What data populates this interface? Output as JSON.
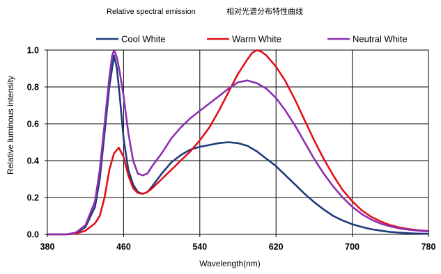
{
  "chart_data": {
    "type": "line",
    "title": "Relative spectral emission",
    "title_cn": "相对光谱分布特性曲线",
    "xlabel": "Wavelength(nm)",
    "ylabel": "Relative luminous intensity",
    "xlim": [
      380,
      780
    ],
    "ylim": [
      0,
      1.0
    ],
    "xticks": [
      "380",
      "460",
      "540",
      "620",
      "700",
      "780"
    ],
    "yticks": [
      "0.0",
      "0.2",
      "0.4",
      "0.6",
      "0.8",
      "1.0"
    ],
    "grid": true,
    "legend_position": "top",
    "series": [
      {
        "name": "Cool White",
        "color": "#1f3a7a",
        "points": [
          [
            380,
            0
          ],
          [
            400,
            0
          ],
          [
            410,
            0.005
          ],
          [
            420,
            0.04
          ],
          [
            430,
            0.15
          ],
          [
            435,
            0.3
          ],
          [
            440,
            0.55
          ],
          [
            445,
            0.8
          ],
          [
            450,
            0.97
          ],
          [
            453,
            0.9
          ],
          [
            456,
            0.75
          ],
          [
            460,
            0.52
          ],
          [
            465,
            0.35
          ],
          [
            470,
            0.27
          ],
          [
            475,
            0.23
          ],
          [
            480,
            0.22
          ],
          [
            485,
            0.23
          ],
          [
            490,
            0.26
          ],
          [
            500,
            0.33
          ],
          [
            510,
            0.39
          ],
          [
            520,
            0.43
          ],
          [
            530,
            0.46
          ],
          [
            540,
            0.475
          ],
          [
            550,
            0.485
          ],
          [
            560,
            0.495
          ],
          [
            570,
            0.5
          ],
          [
            580,
            0.495
          ],
          [
            590,
            0.48
          ],
          [
            600,
            0.45
          ],
          [
            610,
            0.41
          ],
          [
            620,
            0.37
          ],
          [
            630,
            0.32
          ],
          [
            640,
            0.27
          ],
          [
            650,
            0.22
          ],
          [
            660,
            0.175
          ],
          [
            670,
            0.135
          ],
          [
            680,
            0.1
          ],
          [
            690,
            0.075
          ],
          [
            700,
            0.055
          ],
          [
            710,
            0.04
          ],
          [
            720,
            0.028
          ],
          [
            730,
            0.02
          ],
          [
            740,
            0.013
          ],
          [
            750,
            0.009
          ],
          [
            760,
            0.006
          ],
          [
            770,
            0.004
          ],
          [
            780,
            0.003
          ]
        ]
      },
      {
        "name": "Warm White",
        "color": "#e0101a",
        "points": [
          [
            380,
            0
          ],
          [
            400,
            0
          ],
          [
            410,
            0.005
          ],
          [
            420,
            0.02
          ],
          [
            430,
            0.06
          ],
          [
            435,
            0.1
          ],
          [
            440,
            0.2
          ],
          [
            445,
            0.35
          ],
          [
            450,
            0.44
          ],
          [
            455,
            0.47
          ],
          [
            460,
            0.42
          ],
          [
            465,
            0.32
          ],
          [
            470,
            0.25
          ],
          [
            475,
            0.225
          ],
          [
            480,
            0.22
          ],
          [
            485,
            0.23
          ],
          [
            490,
            0.25
          ],
          [
            500,
            0.3
          ],
          [
            510,
            0.35
          ],
          [
            520,
            0.4
          ],
          [
            530,
            0.45
          ],
          [
            540,
            0.51
          ],
          [
            550,
            0.58
          ],
          [
            560,
            0.67
          ],
          [
            570,
            0.77
          ],
          [
            580,
            0.87
          ],
          [
            590,
            0.95
          ],
          [
            595,
            0.985
          ],
          [
            600,
            1.0
          ],
          [
            605,
            0.99
          ],
          [
            610,
            0.97
          ],
          [
            620,
            0.91
          ],
          [
            630,
            0.83
          ],
          [
            640,
            0.73
          ],
          [
            650,
            0.62
          ],
          [
            660,
            0.51
          ],
          [
            670,
            0.41
          ],
          [
            680,
            0.32
          ],
          [
            690,
            0.24
          ],
          [
            700,
            0.18
          ],
          [
            710,
            0.13
          ],
          [
            720,
            0.095
          ],
          [
            730,
            0.07
          ],
          [
            740,
            0.05
          ],
          [
            750,
            0.037
          ],
          [
            760,
            0.028
          ],
          [
            770,
            0.022
          ],
          [
            780,
            0.018
          ]
        ]
      },
      {
        "name": "Neutral White",
        "color": "#8a2fb0",
        "points": [
          [
            380,
            0
          ],
          [
            400,
            0
          ],
          [
            410,
            0.01
          ],
          [
            420,
            0.05
          ],
          [
            430,
            0.18
          ],
          [
            435,
            0.35
          ],
          [
            440,
            0.6
          ],
          [
            445,
            0.85
          ],
          [
            448,
            0.97
          ],
          [
            450,
            1.0
          ],
          [
            453,
            0.96
          ],
          [
            456,
            0.88
          ],
          [
            460,
            0.75
          ],
          [
            465,
            0.55
          ],
          [
            470,
            0.4
          ],
          [
            475,
            0.33
          ],
          [
            480,
            0.32
          ],
          [
            485,
            0.33
          ],
          [
            490,
            0.37
          ],
          [
            500,
            0.44
          ],
          [
            510,
            0.52
          ],
          [
            520,
            0.58
          ],
          [
            530,
            0.63
          ],
          [
            540,
            0.67
          ],
          [
            550,
            0.71
          ],
          [
            560,
            0.75
          ],
          [
            570,
            0.79
          ],
          [
            580,
            0.825
          ],
          [
            590,
            0.835
          ],
          [
            600,
            0.82
          ],
          [
            610,
            0.79
          ],
          [
            620,
            0.74
          ],
          [
            630,
            0.67
          ],
          [
            640,
            0.59
          ],
          [
            650,
            0.5
          ],
          [
            660,
            0.41
          ],
          [
            670,
            0.33
          ],
          [
            680,
            0.26
          ],
          [
            690,
            0.2
          ],
          [
            700,
            0.15
          ],
          [
            710,
            0.11
          ],
          [
            720,
            0.08
          ],
          [
            730,
            0.058
          ],
          [
            740,
            0.043
          ],
          [
            750,
            0.032
          ],
          [
            760,
            0.025
          ],
          [
            770,
            0.02
          ],
          [
            780,
            0.016
          ]
        ]
      }
    ]
  }
}
